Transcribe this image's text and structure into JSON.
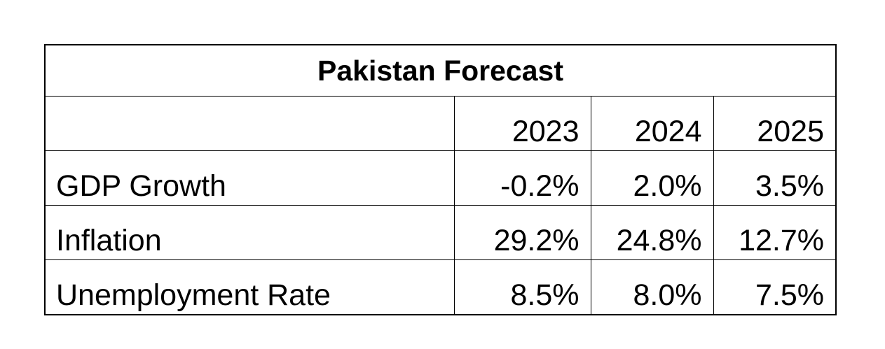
{
  "chart_data": {
    "type": "table",
    "title": "Pakistan Forecast",
    "columns": [
      "2023",
      "2024",
      "2025"
    ],
    "rows": [
      {
        "label": "GDP Growth",
        "values": [
          "-0.2%",
          "2.0%",
          "3.5%"
        ]
      },
      {
        "label": "Inflation",
        "values": [
          "29.2%",
          "24.8%",
          "12.7%"
        ]
      },
      {
        "label": "Unemployment Rate",
        "values": [
          "8.5%",
          "8.0%",
          "7.5%"
        ]
      }
    ]
  }
}
